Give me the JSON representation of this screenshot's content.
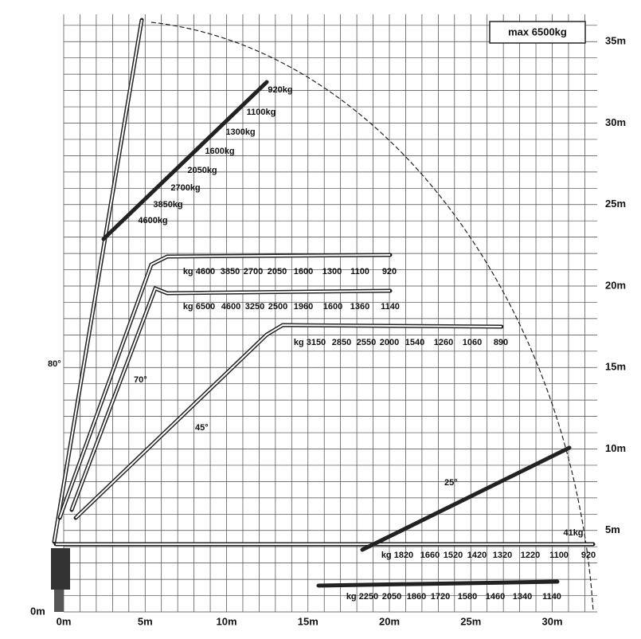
{
  "legend": "max 6500kg",
  "y_axis": [
    "0m",
    "5m",
    "10m",
    "15m",
    "20m",
    "25m",
    "30m",
    "35m"
  ],
  "x_axis": [
    "0m",
    "5m",
    "10m",
    "15m",
    "20m",
    "25m",
    "30m"
  ],
  "angles": [
    "80°",
    "70°",
    "45°",
    "25°"
  ],
  "loads": {
    "boom_80": [
      "920kg",
      "1100kg",
      "1300kg",
      "1600kg",
      "2050kg",
      "2700kg",
      "3850kg",
      "4600kg"
    ],
    "boom_70_upper": [
      "kg 4600",
      "3850",
      "2700",
      "2050",
      "1600",
      "1300",
      "1100",
      "920"
    ],
    "boom_70_lower": [
      "kg 6500",
      "4600",
      "3250",
      "2500",
      "1960",
      "1600",
      "1360",
      "1140"
    ],
    "boom_45": [
      "kg 3150",
      "2850",
      "2550",
      "2000",
      "1540",
      "1260",
      "1060",
      "890"
    ],
    "boom_25": [
      "41kg"
    ],
    "boom_0": [
      "kg 1820",
      "1660",
      "1520",
      "1420",
      "1320",
      "1220",
      "1100",
      "920"
    ],
    "boom_low": [
      "kg 2250",
      "2050",
      "1860",
      "1720",
      "1580",
      "1460",
      "1340",
      "1140"
    ]
  }
}
